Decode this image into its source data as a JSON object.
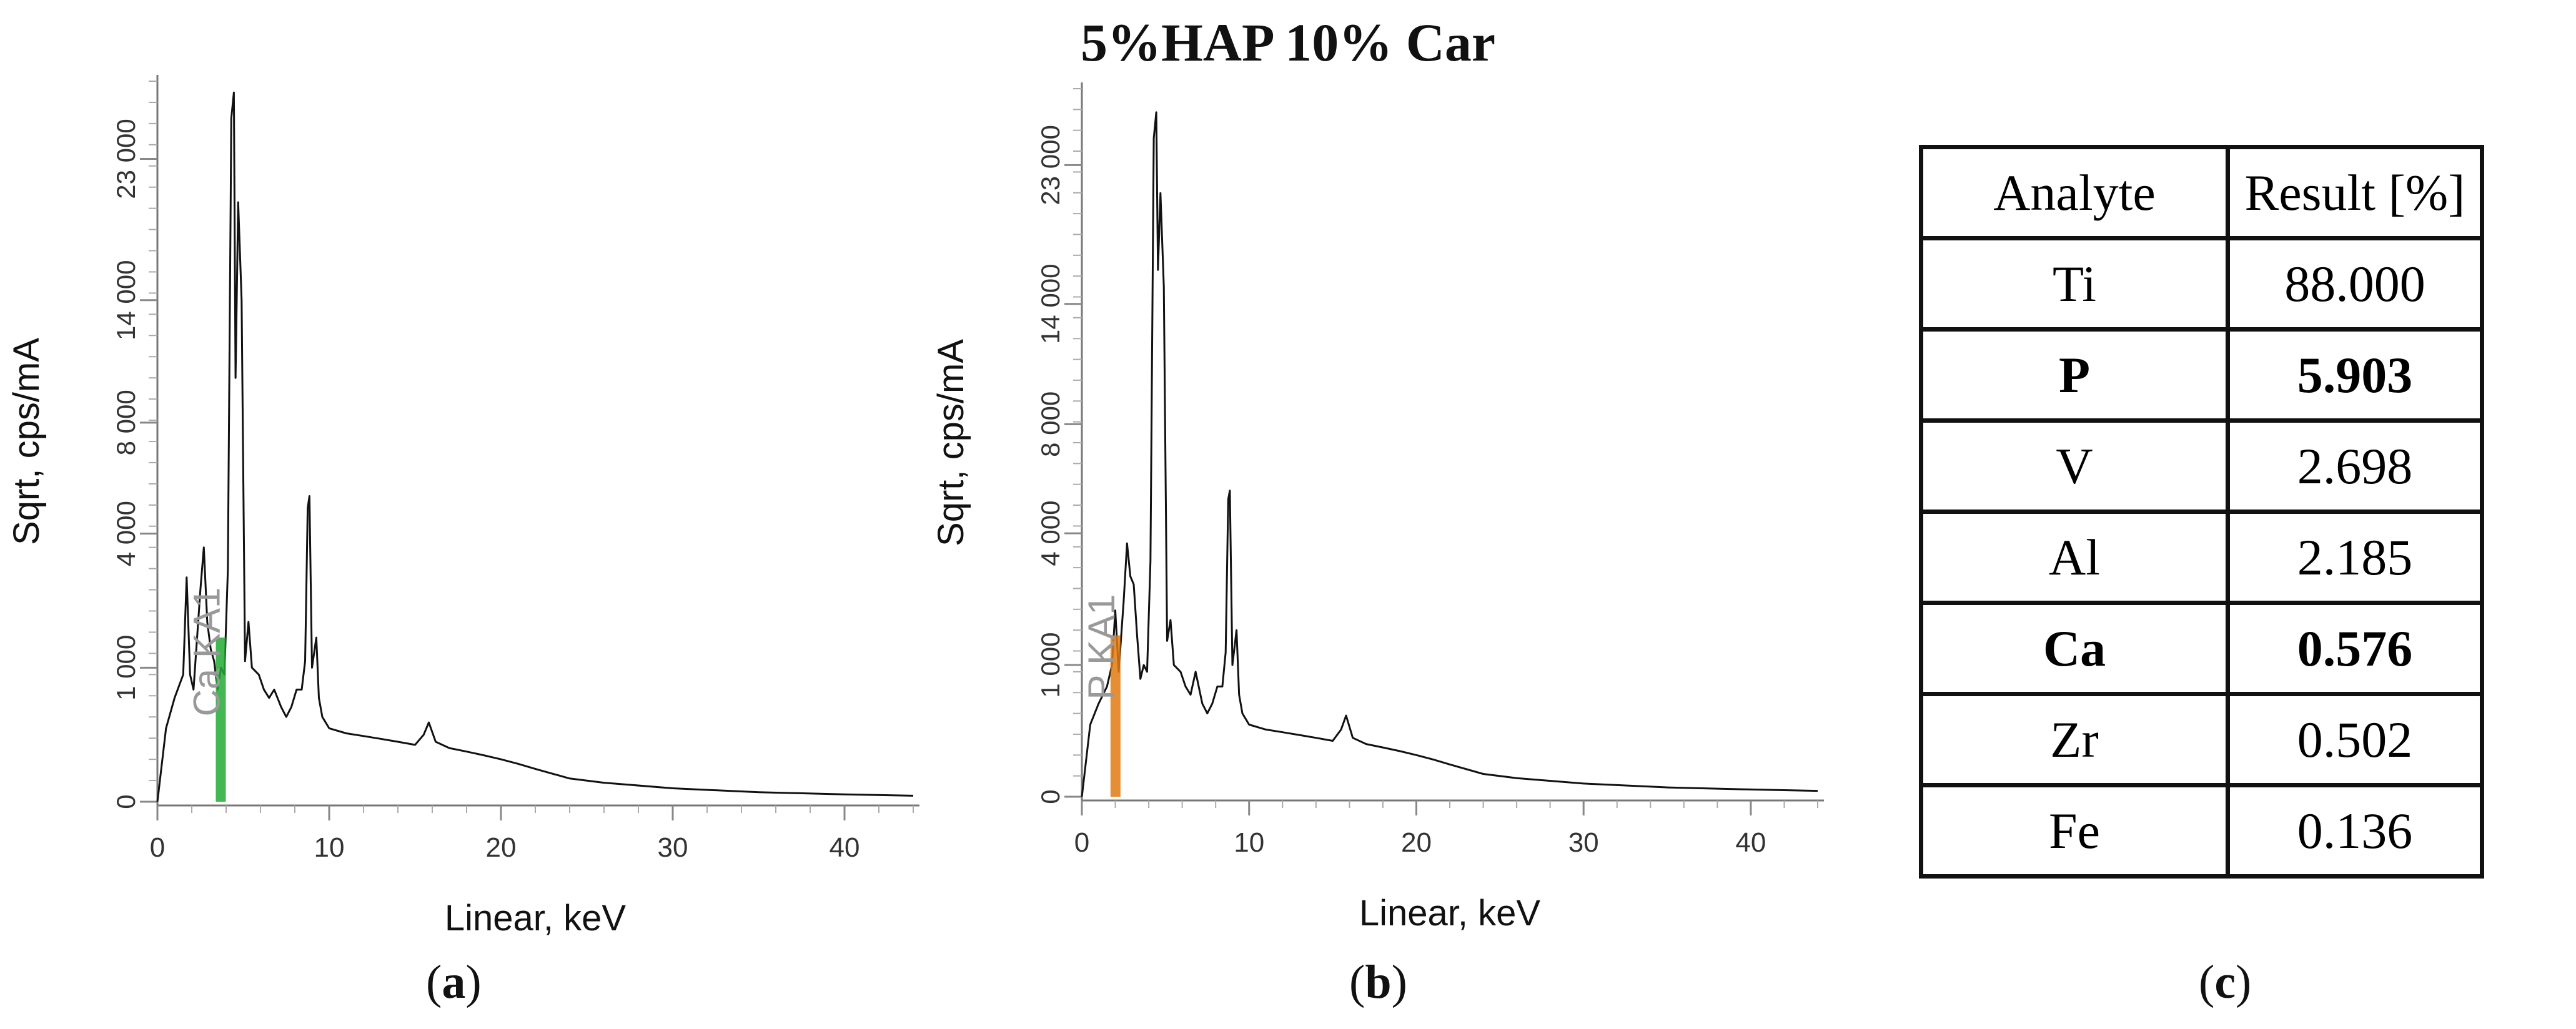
{
  "figure_title": "5%HAP 10% Car",
  "panel_labels": [
    "a",
    "b",
    "c"
  ],
  "colors": {
    "text": "#111111",
    "axis": "#777777",
    "spectrum": "#111111",
    "ca_peak": "#22aa33",
    "p_peak": "#e07a10",
    "peak_label": "#999999"
  },
  "chart_data": [
    {
      "type": "line",
      "panel": "a",
      "xlabel": "Linear, keV",
      "ylabel": "Sqrt, cps/mA",
      "xlim": [
        0,
        44
      ],
      "ylim_sqrt": [
        0,
        170
      ],
      "xticks": [
        0,
        10,
        20,
        30,
        40
      ],
      "yticks": [
        0,
        1000,
        4000,
        8000,
        14000,
        23000
      ],
      "ytick_labels": [
        "0",
        "1 000",
        "4 000",
        "8 000",
        "14 000",
        "23 000"
      ],
      "peak_annotation": {
        "label": "Ca KA1",
        "energy": 3.69,
        "color": "#22aa33"
      },
      "series": [
        {
          "x": [
            0,
            0.5,
            1,
            1.5,
            1.7,
            1.9,
            2.1,
            2.5,
            2.7,
            2.9,
            3.1,
            3.3,
            3.5,
            3.7,
            3.9,
            4.1,
            4.3,
            4.45,
            4.55,
            4.7,
            4.9,
            5.1,
            5.3,
            5.5,
            5.9,
            6.2,
            6.5,
            6.8,
            7.2,
            7.5,
            7.8,
            8.1,
            8.4,
            8.6,
            8.75,
            8.85,
            9.0,
            9.25,
            9.4,
            9.6,
            10,
            11,
            12,
            13,
            14,
            15,
            15.5,
            15.8,
            16.2,
            17,
            18,
            19,
            20,
            21,
            22,
            24,
            26,
            30,
            35,
            40,
            44
          ],
          "y": [
            0,
            300,
            600,
            900,
            2800,
            900,
            700,
            2500,
            3600,
            1800,
            1300,
            1100,
            700,
            1000,
            900,
            3000,
            26000,
            28000,
            10000,
            20000,
            14000,
            1100,
            1800,
            1000,
            900,
            700,
            600,
            700,
            500,
            400,
            500,
            700,
            700,
            1100,
            4800,
            5200,
            1000,
            1500,
            600,
            400,
            300,
            260,
            240,
            220,
            200,
            180,
            250,
            350,
            200,
            160,
            140,
            120,
            100,
            80,
            60,
            30,
            20,
            10,
            5,
            3,
            2
          ]
        }
      ]
    },
    {
      "type": "line",
      "panel": "b",
      "xlabel": "Linear, keV",
      "ylabel": "Sqrt, cps/mA",
      "xlim": [
        0,
        44
      ],
      "ylim_sqrt": [
        0,
        170
      ],
      "xticks": [
        0,
        10,
        20,
        30,
        40
      ],
      "yticks": [
        0,
        1000,
        4000,
        8000,
        14000,
        23000
      ],
      "ytick_labels": [
        "0",
        "1 000",
        "4 000",
        "8 000",
        "14 000",
        "23 000"
      ],
      "peak_annotation": {
        "label": "P KA1",
        "energy": 2.01,
        "color": "#e07a10"
      },
      "series": [
        {
          "x": [
            0,
            0.5,
            1,
            1.5,
            1.8,
            2.0,
            2.2,
            2.5,
            2.7,
            2.9,
            3.1,
            3.3,
            3.5,
            3.7,
            3.9,
            4.1,
            4.3,
            4.45,
            4.55,
            4.7,
            4.9,
            5.1,
            5.3,
            5.5,
            5.9,
            6.2,
            6.5,
            6.8,
            7.2,
            7.5,
            7.8,
            8.1,
            8.4,
            8.6,
            8.75,
            8.85,
            9.0,
            9.25,
            9.4,
            9.6,
            10,
            11,
            12,
            13,
            14,
            15,
            15.5,
            15.8,
            16.2,
            17,
            18,
            19,
            20,
            21,
            22,
            24,
            26,
            30,
            35,
            40,
            44
          ],
          "y": [
            0,
            300,
            500,
            700,
            1000,
            2000,
            900,
            2200,
            3700,
            2800,
            2600,
            1500,
            800,
            1000,
            900,
            3200,
            25000,
            27000,
            16000,
            21000,
            15000,
            1400,
            1800,
            1000,
            900,
            700,
            600,
            900,
            500,
            400,
            500,
            700,
            700,
            1200,
            5100,
            5400,
            1000,
            1600,
            600,
            400,
            300,
            260,
            240,
            220,
            200,
            180,
            260,
            380,
            200,
            160,
            140,
            120,
            100,
            80,
            60,
            30,
            20,
            10,
            5,
            3,
            2
          ]
        }
      ]
    }
  ],
  "table": {
    "headers": [
      "Analyte",
      "Result [%]"
    ],
    "rows": [
      {
        "analyte": "Ti",
        "result": "88.000",
        "bold": false
      },
      {
        "analyte": "P",
        "result": "5.903",
        "bold": true
      },
      {
        "analyte": "V",
        "result": "2.698",
        "bold": false
      },
      {
        "analyte": "Al",
        "result": "2.185",
        "bold": false
      },
      {
        "analyte": "Ca",
        "result": "0.576",
        "bold": true
      },
      {
        "analyte": "Zr",
        "result": "0.502",
        "bold": false
      },
      {
        "analyte": "Fe",
        "result": "0.136",
        "bold": false
      }
    ]
  }
}
